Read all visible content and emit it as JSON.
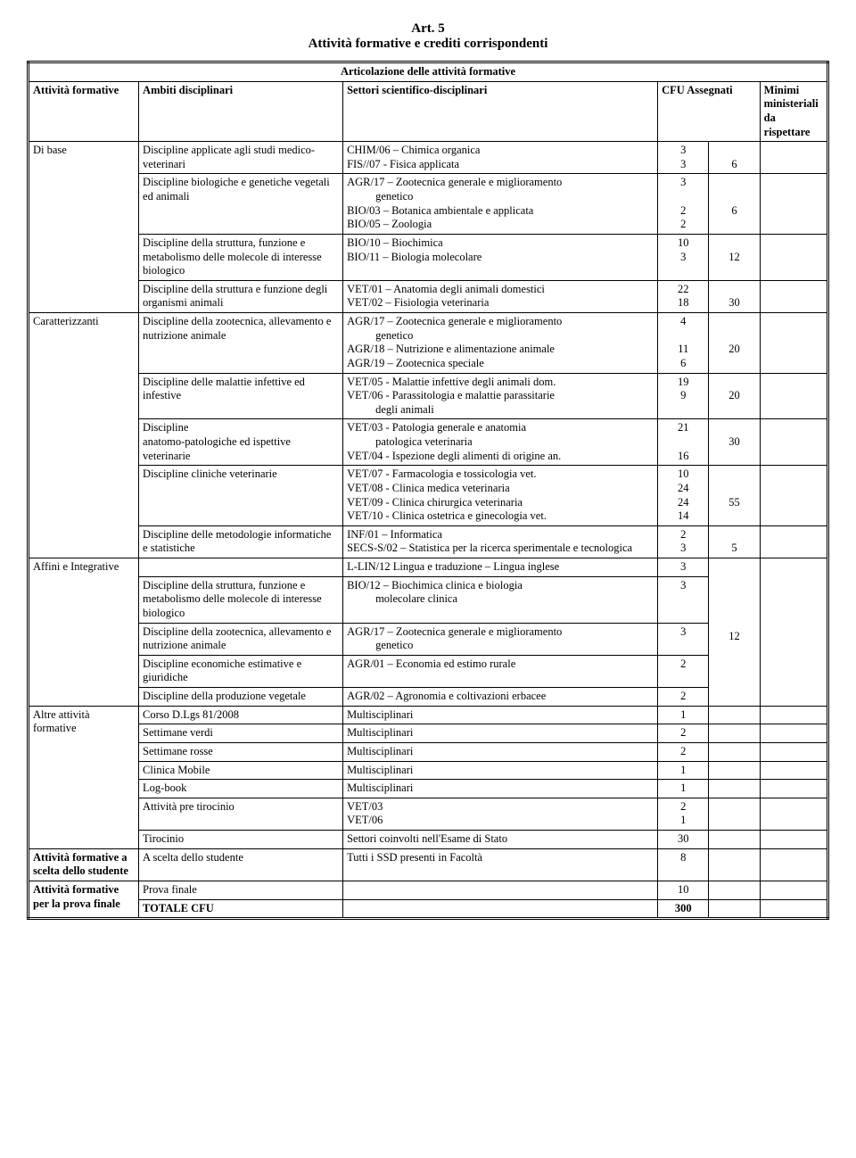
{
  "article_no": "Art. 5",
  "article_title": "Attività formative e crediti corrispondenti",
  "section_header": "Articolazione delle attività formative",
  "headers": {
    "col1": "Attività formative",
    "col2": "Ambiti disciplinari",
    "col3": "Settori scientifico-disciplinari",
    "col4": "CFU Assegnati",
    "col5a": "Minimi",
    "col5b": "ministeriali",
    "col5c": "da rispettare"
  },
  "r": {
    "dibase": "Di base",
    "amb1": "Discipline applicate agli studi medico-veterinari",
    "s1a": "CHIM/06 – Chimica organica",
    "s1b": "FIS//07  - Fisica applicata",
    "v1a": "3",
    "v1b": "3",
    "m1": "6",
    "amb2": "Discipline biologiche e genetiche vegetali ed animali",
    "s2a": "AGR/17 – Zootecnica generale e miglioramento",
    "s2a2": "genetico",
    "s2b": "BIO/03 – Botanica ambientale e applicata",
    "s2c": "BIO/05 – Zoologia",
    "v2a": "3",
    "v2b": "2",
    "v2c": "2",
    "m2": "6",
    "amb3": "Discipline della struttura, funzione e metabolismo delle molecole di interesse biologico",
    "s3a": "BIO/10 – Biochimica",
    "s3b": "BIO/11 – Biologia molecolare",
    "v3a": "10",
    "v3b": "3",
    "m3": "12",
    "amb4": "Discipline della struttura e funzione degli organismi animali",
    "s4a": "VET/01 – Anatomia degli animali domestici",
    "s4b": "VET/02 – Fisiologia veterinaria",
    "v4a": "22",
    "v4b": "18",
    "m4": "30",
    "caratt": "Caratterizzanti",
    "amb5": "Discipline della zootecnica, allevamento e nutrizione animale",
    "s5a": "AGR/17 – Zootecnica generale e miglioramento",
    "s5a2": "genetico",
    "s5b": "AGR/18 – Nutrizione e alimentazione animale",
    "s5c": "AGR/19 – Zootecnica speciale",
    "v5a": "4",
    "v5b": "11",
    "v5c": "6",
    "m5": "20",
    "amb6": "Discipline delle malattie infettive ed infestive",
    "s6a": "VET/05 - Malattie infettive degli animali dom.",
    "s6b": "VET/06 - Parassitologia e malattie parassitarie",
    "s6b2": "degli animali",
    "v6a": "19",
    "v6b": "9",
    "m6": "20",
    "amb7a": "Discipline",
    "amb7b": "anatomo-patologiche  ed ispettive veterinarie",
    "s7a": "VET/03 - Patologia generale e anatomia",
    "s7a2": "patologica veterinaria",
    "s7b": "VET/04 - Ispezione degli alimenti di origine an.",
    "v7a": "21",
    "v7b": "16",
    "m7": "30",
    "amb8": "Discipline cliniche veterinarie",
    "s8a": "VET/07 - Farmacologia e tossicologia vet.",
    "s8b": "VET/08 - Clinica medica veterinaria",
    "s8c": "VET/09 - Clinica chirurgica veterinaria",
    "s8d": "VET/10 - Clinica ostetrica e ginecologia vet.",
    "v8a": "10",
    "v8b": "24",
    "v8c": "24",
    "v8d": "14",
    "m8": "55",
    "amb9": "Discipline delle metodologie informatiche e statistiche",
    "s9a": "INF/01 – Informatica",
    "s9b": "SECS-S/02 – Statistica per la ricerca sperimentale  e tecnologica",
    "v9a": "2",
    "v9b": "3",
    "m9": "5",
    "affini": "Affini  e Integrative",
    "s10": "L-LIN/12 Lingua e traduzione – Lingua inglese",
    "v10": "3",
    "amb11": "Discipline della struttura, funzione e metabolismo delle molecole di interesse biologico",
    "s11a": "BIO/12 – Biochimica clinica e biologia",
    "s11a2": "molecolare clinica",
    "v11": "3",
    "amb12": "Discipline della zootecnica, allevamento e nutrizione animale",
    "s12": "AGR/17 – Zootecnica generale e miglioramento",
    "s12b": "genetico",
    "v12": "3",
    "m12": "12",
    "amb13": "Discipline economiche estimative e giuridiche",
    "s13": "AGR/01 – Economia ed estimo rurale",
    "v13": "2",
    "amb14": "Discipline della produzione vegetale",
    "s14": "AGR/02 – Agronomia e coltivazioni erbacee",
    "v14": "2",
    "altre": "Altre attività formative",
    "amb15": "Corso D.Lgs 81/2008",
    "s15": "Multisciplinari",
    "v15": "1",
    "amb16": "Settimane verdi",
    "s16": "Multisciplinari",
    "v16": "2",
    "amb17": "Settimane rosse",
    "s17": "Multisciplinari",
    "v17": "2",
    "amb18": "Clinica Mobile",
    "s18": "Multisciplinari",
    "v18": "1",
    "amb19": "Log-book",
    "s19": "Multisciplinari",
    "v19": "1",
    "amb20": "Attività pre tirocinio",
    "s20a": "VET/03",
    "s20b": "VET/06",
    "v20a": "2",
    "v20b": "1",
    "amb21": "Tirocinio",
    "s21": "Settori coinvolti nell'Esame di Stato",
    "v21": "30",
    "scelta": "Attività formative a scelta dello studente",
    "amb22": "A scelta dello studente",
    "s22": "Tutti i SSD presenti in Facoltà",
    "v22": "8",
    "provaf": "Attività formative per la prova finale",
    "amb23": "Prova finale",
    "v23": "10",
    "totale": "TOTALE     CFU",
    "vtot": "300"
  }
}
